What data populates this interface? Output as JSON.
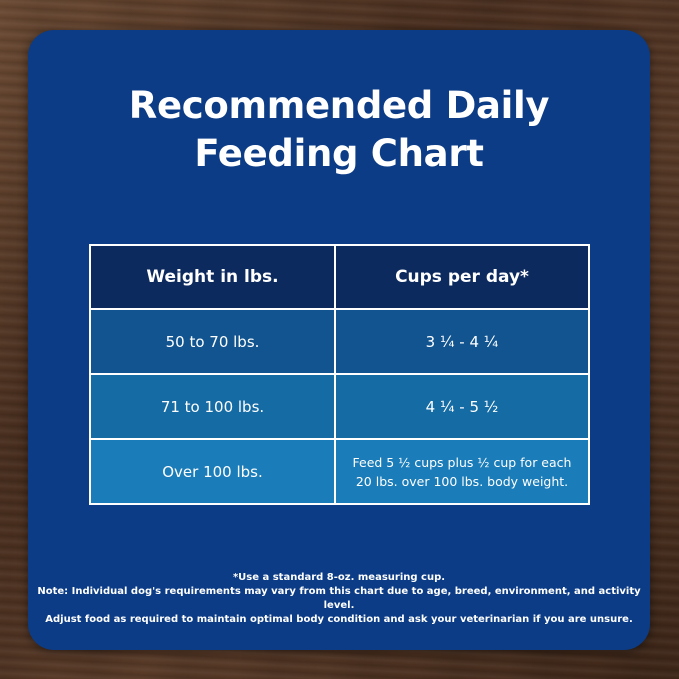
{
  "title": {
    "line1": "Recommended Daily",
    "line2": "Feeding Chart"
  },
  "table": {
    "headers": [
      "Weight in lbs.",
      "Cups per day*"
    ],
    "rows": [
      [
        "50 to 70 lbs.",
        "3 ¼ - 4 ¼"
      ],
      [
        "71 to 100 lbs.",
        "4 ¼ - 5 ½"
      ],
      [
        "Over 100 lbs.",
        "Feed 5 ½ cups plus ½ cup for each 20 lbs. over 100 lbs. body weight."
      ]
    ]
  },
  "notes": {
    "line1": "*Use a standard 8-oz. measuring cup.",
    "line2": "Note: Individual dog's requirements may vary from this chart due to age, breed, environment, and activity level.",
    "line3": "Adjust food as required to maintain optimal body condition and ask your veterinarian if you are unsure."
  },
  "colors": {
    "card": "#0c3c86",
    "header_row": "#0c2a5e",
    "row1": "#11548f",
    "row2": "#156ba4",
    "row3": "#1a7cb8"
  }
}
